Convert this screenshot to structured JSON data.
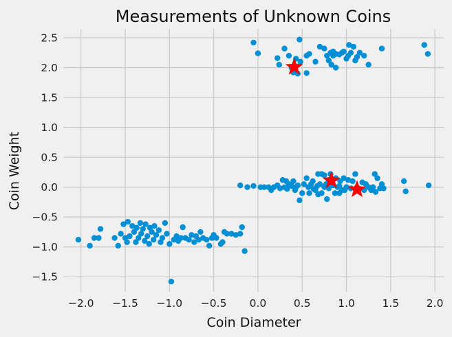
{
  "chart_data": {
    "type": "scatter",
    "title": "Measurements of Unknown Coins",
    "xlabel": "Coin Diameter",
    "ylabel": "Coin Weight",
    "xlim": [
      -2.2,
      2.1
    ],
    "ylim": [
      -1.75,
      2.65
    ],
    "xticks": [
      -2.0,
      -1.5,
      -1.0,
      -0.5,
      0.0,
      0.5,
      1.0,
      1.5,
      2.0
    ],
    "xtick_labels": [
      "−2.0",
      "−1.5",
      "−1.0",
      "−0.5",
      "0.0",
      "0.5",
      "1.0",
      "1.5",
      "2.0"
    ],
    "yticks": [
      -1.5,
      -1.0,
      -0.5,
      0.0,
      0.5,
      1.0,
      1.5,
      2.0,
      2.5
    ],
    "ytick_labels": [
      "−1.5",
      "−1.0",
      "−0.5",
      "0.0",
      "0.5",
      "1.0",
      "1.5",
      "2.0",
      "2.5"
    ],
    "grid": true,
    "colors": {
      "background": "#f0f0f0",
      "points": "#008fd5",
      "centroids": "#ff0000",
      "grid": "#cbcbcb"
    },
    "series": [
      {
        "name": "measurements",
        "marker": "circle",
        "points": [
          [
            -0.05,
            2.42
          ],
          [
            0.0,
            2.24
          ],
          [
            0.22,
            2.16
          ],
          [
            0.24,
            2.05
          ],
          [
            0.3,
            2.32
          ],
          [
            0.35,
            2.2
          ],
          [
            0.38,
            2.0
          ],
          [
            0.4,
            1.92
          ],
          [
            0.43,
            2.15
          ],
          [
            0.45,
            1.9
          ],
          [
            0.47,
            2.47
          ],
          [
            0.48,
            2.1
          ],
          [
            0.55,
            1.91
          ],
          [
            0.55,
            2.2
          ],
          [
            0.58,
            2.23
          ],
          [
            0.65,
            2.1
          ],
          [
            0.7,
            2.35
          ],
          [
            0.75,
            2.32
          ],
          [
            0.78,
            2.2
          ],
          [
            0.8,
            2.12
          ],
          [
            0.82,
            2.25
          ],
          [
            0.83,
            2.05
          ],
          [
            0.85,
            2.2
          ],
          [
            0.85,
            2.27
          ],
          [
            0.88,
            2.0
          ],
          [
            0.88,
            2.23
          ],
          [
            0.92,
            2.22
          ],
          [
            0.95,
            2.25
          ],
          [
            0.97,
            2.27
          ],
          [
            1.0,
            2.15
          ],
          [
            1.02,
            2.2
          ],
          [
            1.03,
            2.38
          ],
          [
            1.05,
            2.25
          ],
          [
            1.08,
            2.35
          ],
          [
            1.1,
            2.12
          ],
          [
            1.12,
            2.18
          ],
          [
            1.15,
            2.25
          ],
          [
            1.2,
            2.2
          ],
          [
            1.25,
            2.05
          ],
          [
            1.4,
            2.32
          ],
          [
            1.88,
            2.38
          ],
          [
            1.92,
            2.23
          ],
          [
            -0.2,
            0.03
          ],
          [
            -0.12,
            0.0
          ],
          [
            -0.05,
            0.02
          ],
          [
            0.03,
            0.0
          ],
          [
            0.07,
            0.0
          ],
          [
            0.12,
            0.0
          ],
          [
            0.15,
            -0.05
          ],
          [
            0.18,
            0.0
          ],
          [
            0.22,
            0.03
          ],
          [
            0.25,
            -0.02
          ],
          [
            0.28,
            0.12
          ],
          [
            0.3,
            0.0
          ],
          [
            0.32,
            0.1
          ],
          [
            0.33,
            -0.03
          ],
          [
            0.35,
            0.05
          ],
          [
            0.38,
            0.02
          ],
          [
            0.4,
            0.1
          ],
          [
            0.42,
            -0.05
          ],
          [
            0.43,
            0.0
          ],
          [
            0.45,
            0.03
          ],
          [
            0.47,
            -0.22
          ],
          [
            0.5,
            -0.1
          ],
          [
            0.52,
            0.05
          ],
          [
            0.55,
            0.15
          ],
          [
            0.57,
            0.0
          ],
          [
            0.58,
            -0.1
          ],
          [
            0.6,
            0.05
          ],
          [
            0.62,
            0.1
          ],
          [
            0.63,
            -0.03
          ],
          [
            0.65,
            -0.05
          ],
          [
            0.67,
            0.02
          ],
          [
            0.68,
            0.22
          ],
          [
            0.7,
            0.05
          ],
          [
            0.72,
            0.22
          ],
          [
            0.72,
            -0.1
          ],
          [
            0.75,
            0.2
          ],
          [
            0.75,
            0.0
          ],
          [
            0.77,
            0.05
          ],
          [
            0.78,
            -0.2
          ],
          [
            0.8,
            0.12
          ],
          [
            0.8,
            -0.02
          ],
          [
            0.82,
            0.22
          ],
          [
            0.85,
            0.03
          ],
          [
            0.87,
            -0.1
          ],
          [
            0.88,
            0.15
          ],
          [
            0.9,
            0.0
          ],
          [
            0.92,
            0.02
          ],
          [
            0.93,
            0.1
          ],
          [
            0.95,
            -0.05
          ],
          [
            0.97,
            0.15
          ],
          [
            0.98,
            -0.05
          ],
          [
            1.0,
            0.0
          ],
          [
            1.02,
            0.12
          ],
          [
            1.05,
            -0.02
          ],
          [
            1.07,
            0.1
          ],
          [
            1.1,
            0.22
          ],
          [
            1.12,
            0.0
          ],
          [
            1.15,
            -0.03
          ],
          [
            1.18,
            0.08
          ],
          [
            1.2,
            -0.05
          ],
          [
            1.22,
            0.05
          ],
          [
            1.25,
            0.0
          ],
          [
            1.28,
            -0.05
          ],
          [
            1.3,
            0.0
          ],
          [
            1.32,
            0.22
          ],
          [
            1.33,
            -0.08
          ],
          [
            1.35,
            0.15
          ],
          [
            1.38,
            -0.02
          ],
          [
            1.4,
            0.05
          ],
          [
            1.42,
            -0.02
          ],
          [
            1.65,
            0.1
          ],
          [
            1.67,
            -0.07
          ],
          [
            1.93,
            0.03
          ],
          [
            0.92,
            -0.1
          ],
          [
            0.68,
            -0.12
          ],
          [
            -2.03,
            -0.88
          ],
          [
            -1.9,
            -0.98
          ],
          [
            -1.85,
            -0.85
          ],
          [
            -1.8,
            -0.85
          ],
          [
            -1.78,
            -0.7
          ],
          [
            -1.62,
            -0.85
          ],
          [
            -1.58,
            -0.98
          ],
          [
            -1.55,
            -0.78
          ],
          [
            -1.52,
            -0.62
          ],
          [
            -1.5,
            -0.85
          ],
          [
            -1.48,
            -0.92
          ],
          [
            -1.47,
            -0.58
          ],
          [
            -1.45,
            -0.82
          ],
          [
            -1.42,
            -0.65
          ],
          [
            -1.4,
            -0.75
          ],
          [
            -1.38,
            -0.92
          ],
          [
            -1.37,
            -0.68
          ],
          [
            -1.35,
            -0.85
          ],
          [
            -1.33,
            -0.6
          ],
          [
            -1.32,
            -0.78
          ],
          [
            -1.3,
            -0.7
          ],
          [
            -1.28,
            -0.9
          ],
          [
            -1.27,
            -0.62
          ],
          [
            -1.25,
            -0.82
          ],
          [
            -1.23,
            -0.95
          ],
          [
            -1.22,
            -0.68
          ],
          [
            -1.2,
            -0.75
          ],
          [
            -1.18,
            -0.88
          ],
          [
            -1.17,
            -0.65
          ],
          [
            -1.15,
            -0.8
          ],
          [
            -1.12,
            -0.72
          ],
          [
            -1.1,
            -0.92
          ],
          [
            -1.08,
            -0.85
          ],
          [
            -1.05,
            -0.6
          ],
          [
            -1.03,
            -0.78
          ],
          [
            -1.0,
            -0.95
          ],
          [
            -0.98,
            -1.58
          ],
          [
            -0.95,
            -0.88
          ],
          [
            -0.92,
            -0.82
          ],
          [
            -0.9,
            -0.9
          ],
          [
            -0.87,
            -0.85
          ],
          [
            -0.85,
            -0.67
          ],
          [
            -0.82,
            -0.85
          ],
          [
            -0.78,
            -0.88
          ],
          [
            -0.75,
            -0.8
          ],
          [
            -0.72,
            -0.92
          ],
          [
            -0.7,
            -0.82
          ],
          [
            -0.67,
            -0.88
          ],
          [
            -0.65,
            -0.75
          ],
          [
            -0.62,
            -0.85
          ],
          [
            -0.58,
            -0.88
          ],
          [
            -0.55,
            -0.98
          ],
          [
            -0.52,
            -0.85
          ],
          [
            -0.5,
            -0.8
          ],
          [
            -0.47,
            -0.85
          ],
          [
            -0.42,
            -0.95
          ],
          [
            -0.4,
            -0.92
          ],
          [
            -0.38,
            -0.75
          ],
          [
            -0.35,
            -0.78
          ],
          [
            -0.3,
            -0.78
          ],
          [
            -0.25,
            -0.8
          ],
          [
            -0.2,
            -0.78
          ],
          [
            -0.18,
            -0.67
          ],
          [
            -0.15,
            -1.07
          ]
        ]
      },
      {
        "name": "centroids",
        "marker": "star",
        "points": [
          [
            0.41,
            2.01
          ],
          [
            0.83,
            0.11
          ],
          [
            1.12,
            -0.04
          ]
        ]
      }
    ]
  }
}
